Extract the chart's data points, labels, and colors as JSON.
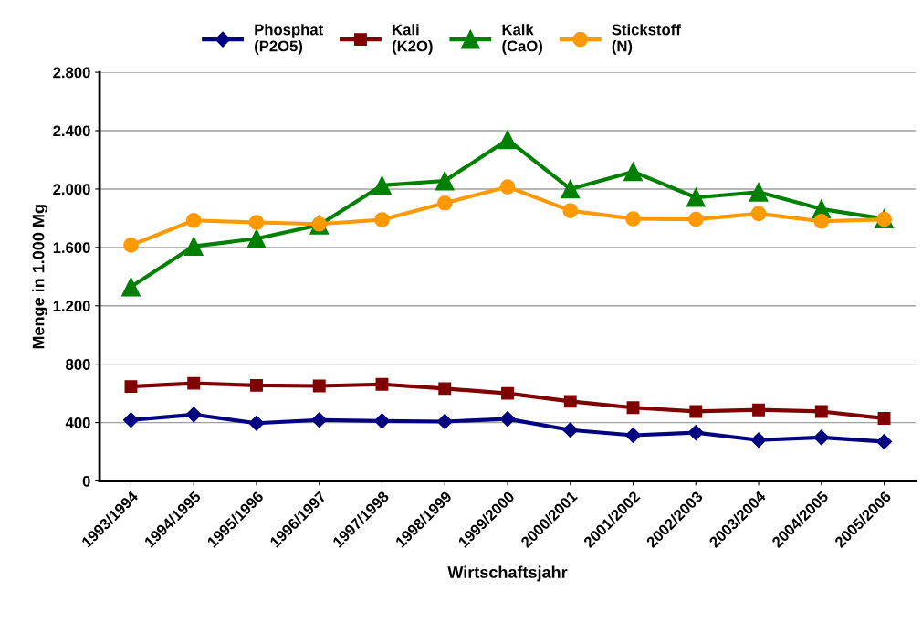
{
  "chart_data": {
    "type": "line",
    "xlabel": "Wirtschaftsjahr",
    "ylabel": "Menge in 1.000 Mg",
    "categories": [
      "1993/1994",
      "1994/1995",
      "1995/1996",
      "1996/1997",
      "1997/1998",
      "1998/1999",
      "1999/2000",
      "2000/2001",
      "2001/2002",
      "2002/2003",
      "2003/2004",
      "2004/2005",
      "2005/2006"
    ],
    "series": [
      {
        "name": "Phosphat\n(P2O5)",
        "color": "#000080",
        "marker": "diamond",
        "values": [
          418,
          455,
          396,
          418,
          411,
          407,
          425,
          349,
          313,
          331,
          280,
          298,
          269
        ]
      },
      {
        "name": "Kali\n(K2O)",
        "color": "#800000",
        "marker": "square",
        "values": [
          647,
          669,
          655,
          651,
          662,
          633,
          600,
          545,
          502,
          476,
          487,
          476,
          429
        ]
      },
      {
        "name": "Kalk\n(CaO)",
        "color": "#008000",
        "marker": "triangle",
        "values": [
          1330,
          1608,
          1660,
          1754,
          2025,
          2056,
          2338,
          2000,
          2119,
          1942,
          1979,
          1863,
          1796
        ]
      },
      {
        "name": "Stickstoff\n(N)",
        "color": "#ff9900",
        "marker": "circle",
        "values": [
          1615,
          1785,
          1771,
          1760,
          1790,
          1904,
          2015,
          1852,
          1796,
          1792,
          1831,
          1779,
          1792
        ]
      }
    ],
    "ylim": [
      0,
      2800
    ],
    "yticks": [
      {
        "value": 0,
        "label": "0"
      },
      {
        "value": 400,
        "label": "400"
      },
      {
        "value": 800,
        "label": "800"
      },
      {
        "value": 1200,
        "label": "1.200"
      },
      {
        "value": 1600,
        "label": "1.600"
      },
      {
        "value": 2000,
        "label": "2.000"
      },
      {
        "value": 2400,
        "label": "2.400"
      },
      {
        "value": 2800,
        "label": "2.800"
      }
    ],
    "grid": "y",
    "legend": "top",
    "line_style": "solid"
  }
}
